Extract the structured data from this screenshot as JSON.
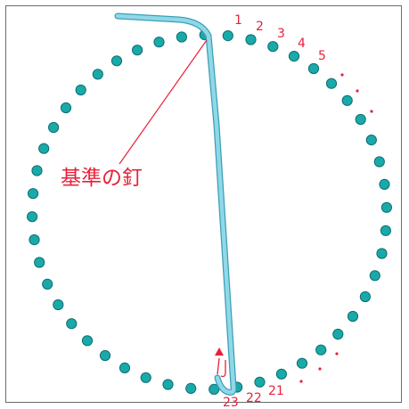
{
  "colors": {
    "nail_fill": "#1aa9a9",
    "nail_stroke": "#0d6f72",
    "string": "#8fd8e8",
    "string_edge": "#3d9fb5",
    "accent_red": "#e8213a",
    "frame": "#6b6b6b"
  },
  "labels": {
    "reference_nail": "基準の釘"
  },
  "nail_numbers": {
    "n1": "1",
    "n2": "2",
    "n3": "3",
    "n4": "4",
    "n5": "5",
    "n21": "21",
    "n22": "22",
    "n23": "23"
  },
  "nail_count_visible": 48
}
